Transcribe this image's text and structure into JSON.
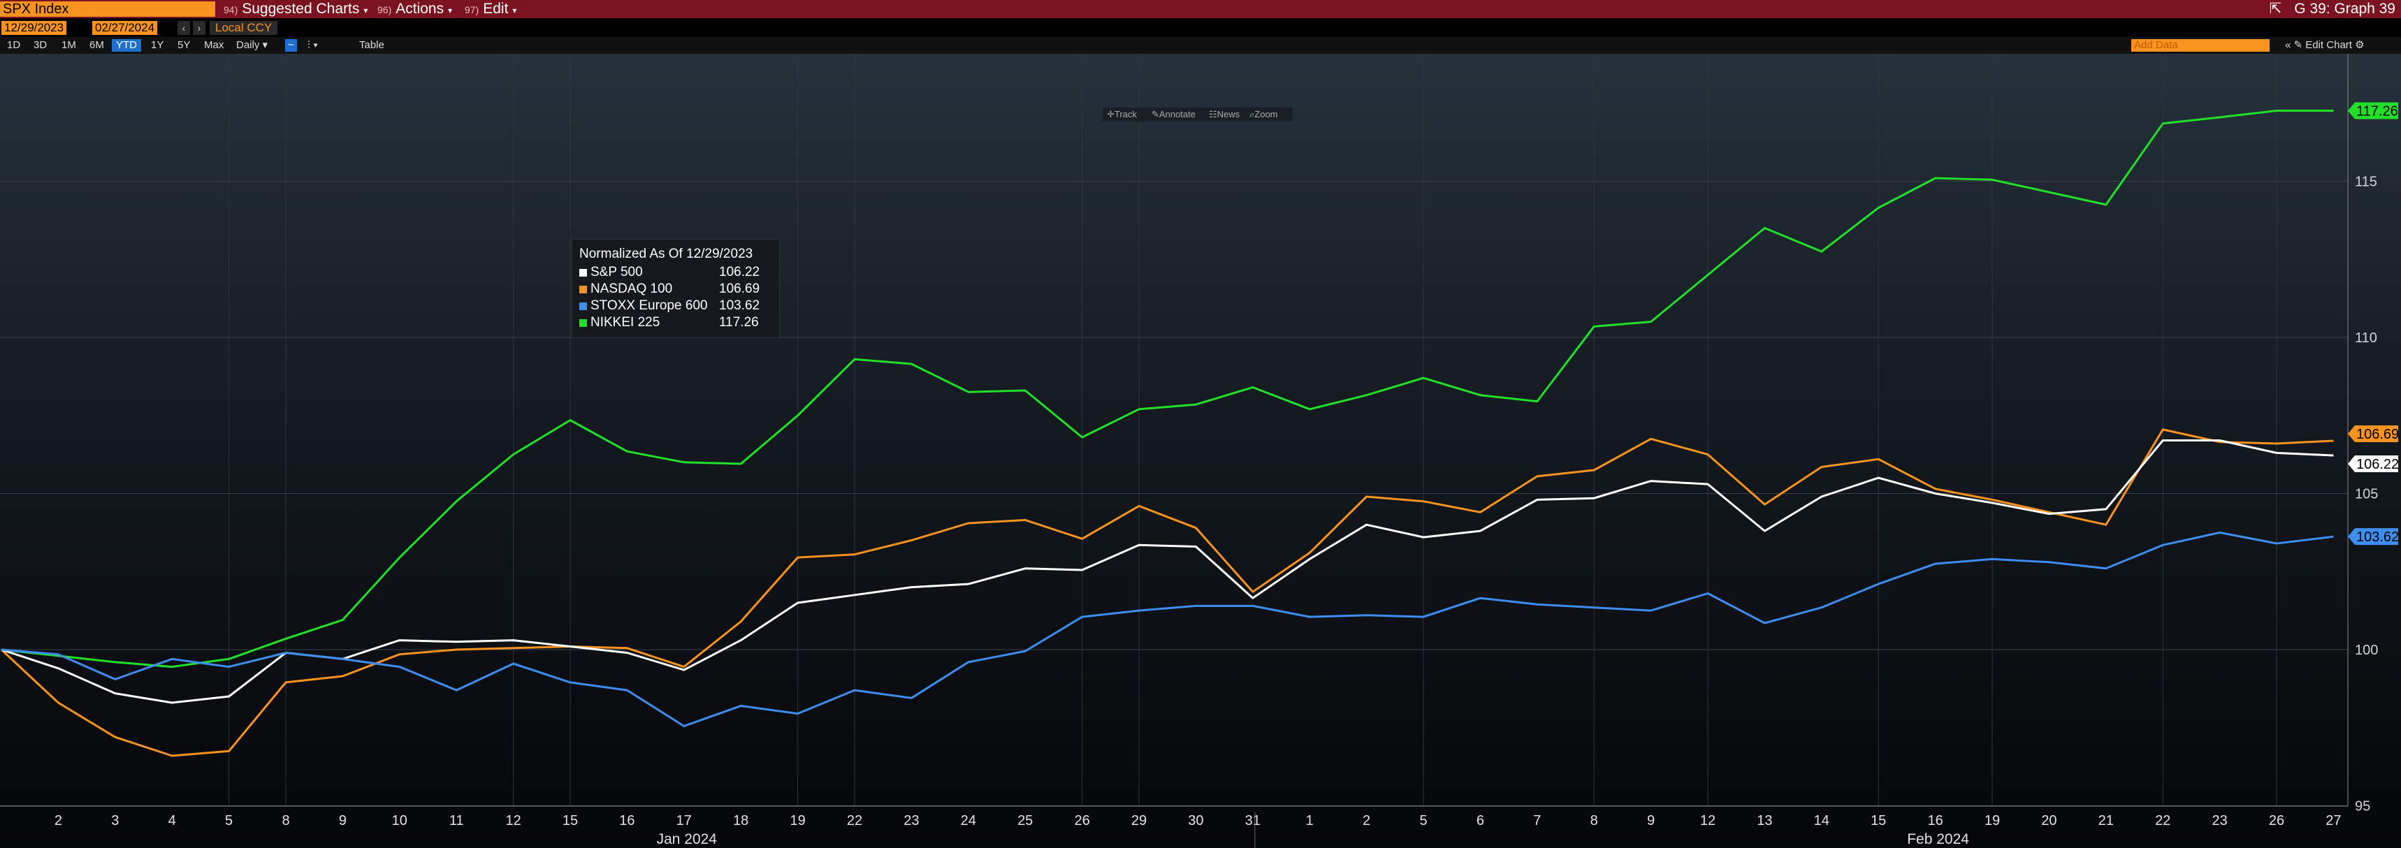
{
  "header": {
    "ticker": "SPX Index",
    "menu": [
      {
        "num": "94)",
        "label": "Suggested Charts"
      },
      {
        "num": "96)",
        "label": "Actions"
      },
      {
        "num": "97)",
        "label": "Edit"
      }
    ],
    "graph_label": "G 39: Graph 39"
  },
  "controls": {
    "start_date": "12/29/2023",
    "end_date": "02/27/2024",
    "currency": "Local CCY",
    "periods": [
      "1D",
      "3D",
      "1M",
      "6M",
      "YTD",
      "1Y",
      "5Y",
      "Max"
    ],
    "active_period": "YTD",
    "frequency": "Daily",
    "table_label": "Table",
    "add_data_placeholder": "Add Data",
    "edit_chart_label": "Edit Chart"
  },
  "toolbar": {
    "track": "Track",
    "annotate": "Annotate",
    "news": "News",
    "zoom": "Zoom"
  },
  "colors": {
    "sp500": "#ffffff",
    "nasdaq": "#f7931e",
    "stoxx": "#3d8ef0",
    "nikkei": "#22e02a",
    "accent": "#f7931e",
    "header": "#7b1220"
  },
  "chart_data": {
    "type": "line",
    "legend_title": "Normalized As Of 12/29/2023",
    "ylim": [
      95,
      119
    ],
    "y_ticks": [
      95,
      100,
      105,
      110,
      115
    ],
    "x_tick_labels": [
      "2",
      "3",
      "4",
      "5",
      "8",
      "9",
      "10",
      "11",
      "12",
      "15",
      "16",
      "17",
      "18",
      "19",
      "22",
      "23",
      "24",
      "25",
      "26",
      "29",
      "30",
      "31",
      "1",
      "2",
      "5",
      "6",
      "7",
      "8",
      "9",
      "12",
      "13",
      "14",
      "15",
      "16",
      "19",
      "20",
      "21",
      "22",
      "23",
      "26",
      "27"
    ],
    "month_labels": [
      {
        "label": "Jan 2024",
        "at_index": 11
      },
      {
        "label": "Feb 2024",
        "at_index": 33
      }
    ],
    "x": [
      "2023-12-29",
      "2024-01-02",
      "2024-01-03",
      "2024-01-04",
      "2024-01-05",
      "2024-01-08",
      "2024-01-09",
      "2024-01-10",
      "2024-01-11",
      "2024-01-12",
      "2024-01-15",
      "2024-01-16",
      "2024-01-17",
      "2024-01-18",
      "2024-01-19",
      "2024-01-22",
      "2024-01-23",
      "2024-01-24",
      "2024-01-25",
      "2024-01-26",
      "2024-01-29",
      "2024-01-30",
      "2024-01-31",
      "2024-02-01",
      "2024-02-02",
      "2024-02-05",
      "2024-02-06",
      "2024-02-07",
      "2024-02-08",
      "2024-02-09",
      "2024-02-12",
      "2024-02-13",
      "2024-02-14",
      "2024-02-15",
      "2024-02-16",
      "2024-02-19",
      "2024-02-20",
      "2024-02-21",
      "2024-02-22",
      "2024-02-23",
      "2024-02-26",
      "2024-02-27"
    ],
    "series": [
      {
        "name": "S&P 500",
        "key": "sp500",
        "last": "106.22",
        "values": [
          100,
          99.4,
          98.6,
          98.3,
          98.5,
          99.9,
          99.7,
          100.3,
          100.25,
          100.3,
          100.1,
          99.9,
          99.35,
          100.3,
          101.5,
          101.75,
          102.0,
          102.1,
          102.6,
          102.55,
          103.35,
          103.3,
          101.65,
          102.9,
          104.0,
          103.6,
          103.8,
          104.8,
          104.85,
          105.4,
          105.3,
          103.8,
          104.9,
          105.5,
          105.0,
          104.7,
          104.35,
          104.5,
          106.7,
          106.7,
          106.3,
          106.22
        ]
      },
      {
        "name": "NASDAQ 100",
        "key": "nasdaq",
        "last": "106.69",
        "values": [
          100,
          98.3,
          97.2,
          96.6,
          96.75,
          98.95,
          99.15,
          99.85,
          100.0,
          100.05,
          100.1,
          100.05,
          99.45,
          100.9,
          102.95,
          103.05,
          103.5,
          104.05,
          104.15,
          103.55,
          104.6,
          103.9,
          101.85,
          103.1,
          104.9,
          104.75,
          104.4,
          105.55,
          105.75,
          106.75,
          106.25,
          104.65,
          105.85,
          106.1,
          105.15,
          104.8,
          104.4,
          104.0,
          107.05,
          106.65,
          106.6,
          106.69
        ]
      },
      {
        "name": "STOXX Europe 600",
        "key": "stoxx",
        "last": "103.62",
        "values": [
          100,
          99.85,
          99.05,
          99.7,
          99.45,
          99.9,
          99.7,
          99.45,
          98.7,
          99.55,
          98.95,
          98.7,
          97.55,
          98.2,
          97.95,
          98.7,
          98.45,
          99.6,
          99.95,
          101.05,
          101.25,
          101.4,
          101.4,
          101.05,
          101.1,
          101.05,
          101.65,
          101.45,
          101.35,
          101.25,
          101.8,
          100.85,
          101.35,
          102.1,
          102.75,
          102.9,
          102.8,
          102.6,
          103.35,
          103.75,
          103.4,
          103.62
        ]
      },
      {
        "name": "NIKKEI 225",
        "key": "nikkei",
        "last": "117.26",
        "values": [
          100,
          99.8,
          99.6,
          99.45,
          99.7,
          100.35,
          100.95,
          102.95,
          104.75,
          106.25,
          107.35,
          106.35,
          106.0,
          105.95,
          107.5,
          109.3,
          109.15,
          108.25,
          108.3,
          106.8,
          107.7,
          107.85,
          108.4,
          107.7,
          108.15,
          108.7,
          108.15,
          107.95,
          110.35,
          110.5,
          112.0,
          113.5,
          112.75,
          114.15,
          115.1,
          115.05,
          114.65,
          114.25,
          116.85,
          117.05,
          117.26,
          117.26
        ]
      }
    ]
  }
}
